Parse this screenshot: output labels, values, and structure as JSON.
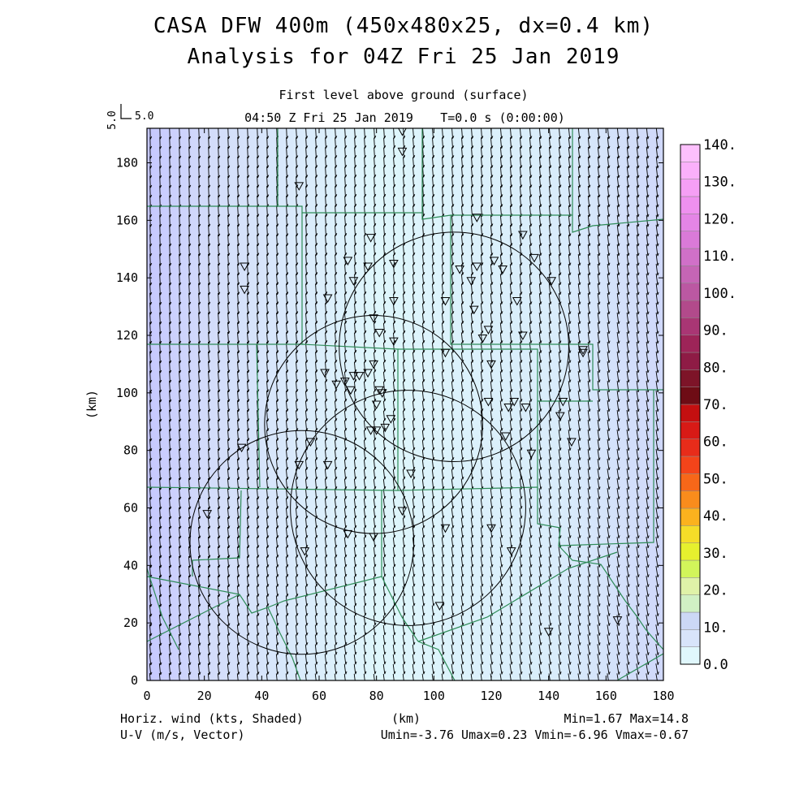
{
  "title": {
    "line1": "CASA DFW 400m (450x480x25, dx=0.4 km)",
    "line2": "Analysis for 04Z Fri 25 Jan 2019"
  },
  "subtitle": {
    "level": "First level above ground (surface)",
    "time": "04:50 Z Fri 25 Jan 2019",
    "tstep": "T=0.0 s (0:00:00)"
  },
  "vector_key": {
    "value": "5.0",
    "label": "5.0"
  },
  "footer": {
    "left1": "Horiz. wind (kts, Shaded)",
    "left2": "U-V (m/s, Vector)",
    "center": "(km)",
    "minmax": "Min=1.67 Max=14.8",
    "uv_stats": "Umin=-3.76 Umax=0.23 Vmin=-6.96 Vmax=-0.67"
  },
  "colors": {
    "field_low": "#dff7fc",
    "field_high": "#c6c8ff",
    "county_lines": "#2e8b57",
    "arrows": "#000000"
  },
  "chart_data": {
    "type": "heatmap",
    "ylabel": "(km)",
    "xlim": [
      0,
      180
    ],
    "ylim": [
      0,
      192
    ],
    "xticks": [
      0,
      20,
      40,
      60,
      80,
      100,
      120,
      140,
      160,
      180
    ],
    "yticks": [
      0,
      20,
      40,
      60,
      80,
      100,
      120,
      140,
      160,
      180
    ],
    "field_min": 1.67,
    "field_max": 14.8,
    "u_range": [
      -3.76,
      0.23
    ],
    "v_range": [
      -6.96,
      -0.67
    ],
    "colorbar": {
      "labels": [
        "0.0",
        "10.",
        "20.",
        "30.",
        "40.",
        "50.",
        "60.",
        "70.",
        "80.",
        "90.",
        "100.",
        "110.",
        "120.",
        "130.",
        "140."
      ],
      "colors": [
        "#e0f7fc",
        "#d8e4fa",
        "#ccd8f6",
        "#d0f0c4",
        "#dff2a8",
        "#d2f55a",
        "#e6f02e",
        "#f5dd28",
        "#fbb21e",
        "#f98c1c",
        "#f76719",
        "#f4441a",
        "#e82c1a",
        "#d81a16",
        "#c40f10",
        "#6e0c15",
        "#7d1428",
        "#8e1b45",
        "#9d2458",
        "#a93674",
        "#b24a8b",
        "#bb58a2",
        "#c565b5",
        "#d070c8",
        "#da7ad8",
        "#e485e6",
        "#ee90ef",
        "#f59ff5",
        "#fab0fa",
        "#fdc0fd"
      ]
    },
    "range_rings": [
      {
        "cx": 54,
        "cy": 48,
        "r": 39
      },
      {
        "cx": 79,
        "cy": 89,
        "r": 38
      },
      {
        "cx": 91,
        "cy": 60,
        "r": 41
      },
      {
        "cx": 107,
        "cy": 116,
        "r": 40
      }
    ],
    "stations": [
      [
        89,
        191
      ],
      [
        89,
        184
      ],
      [
        53,
        172
      ],
      [
        34,
        144
      ],
      [
        34,
        136
      ],
      [
        63,
        133
      ],
      [
        78,
        154
      ],
      [
        70,
        146
      ],
      [
        77,
        144
      ],
      [
        72,
        139
      ],
      [
        86,
        145
      ],
      [
        115,
        161
      ],
      [
        131,
        155
      ],
      [
        121,
        146
      ],
      [
        115,
        144
      ],
      [
        109,
        143
      ],
      [
        113,
        139
      ],
      [
        124,
        143
      ],
      [
        135,
        147
      ],
      [
        141,
        139
      ],
      [
        129,
        132
      ],
      [
        114,
        129
      ],
      [
        104,
        132
      ],
      [
        86,
        132
      ],
      [
        79,
        126
      ],
      [
        81,
        121
      ],
      [
        86,
        118
      ],
      [
        79,
        110
      ],
      [
        119,
        122
      ],
      [
        117,
        119
      ],
      [
        131,
        120
      ],
      [
        104,
        114
      ],
      [
        120,
        110
      ],
      [
        152,
        115
      ],
      [
        152,
        114
      ],
      [
        62,
        107
      ],
      [
        66,
        103
      ],
      [
        69,
        104
      ],
      [
        71,
        101
      ],
      [
        72,
        106
      ],
      [
        74,
        106
      ],
      [
        77,
        107
      ],
      [
        80,
        96
      ],
      [
        82,
        100
      ],
      [
        81,
        101
      ],
      [
        85,
        91
      ],
      [
        83,
        88
      ],
      [
        78,
        87
      ],
      [
        80,
        87
      ],
      [
        119,
        97
      ],
      [
        128,
        97
      ],
      [
        126,
        95
      ],
      [
        132,
        95
      ],
      [
        145,
        97
      ],
      [
        144,
        92
      ],
      [
        148,
        83
      ],
      [
        134,
        79
      ],
      [
        125,
        85
      ],
      [
        57,
        83
      ],
      [
        33,
        81
      ],
      [
        63,
        75
      ],
      [
        53,
        75
      ],
      [
        92,
        72
      ],
      [
        89,
        59
      ],
      [
        70,
        51
      ],
      [
        79,
        50
      ],
      [
        104,
        53
      ],
      [
        120,
        53
      ],
      [
        21,
        58
      ],
      [
        55,
        45
      ],
      [
        127,
        45
      ],
      [
        102,
        26
      ],
      [
        140,
        17
      ],
      [
        164,
        21
      ]
    ]
  }
}
